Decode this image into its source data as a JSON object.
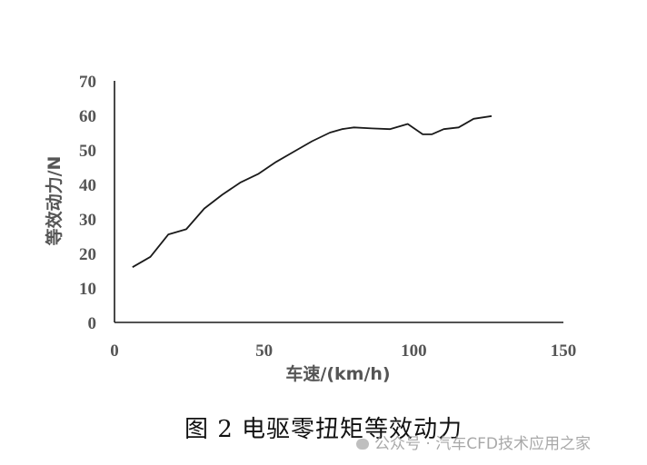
{
  "chart_data": {
    "type": "line",
    "title": "",
    "xlabel": "车速/(km/h)",
    "ylabel": "等效动力/N",
    "xlim": [
      0,
      150
    ],
    "ylim": [
      0,
      70
    ],
    "xticks": [
      0,
      50,
      100,
      150
    ],
    "yticks": [
      0,
      10,
      20,
      30,
      40,
      50,
      60,
      70
    ],
    "grid": false,
    "series": [
      {
        "color": "#1a1a1a",
        "x": [
          6,
          12,
          18,
          24,
          30,
          36,
          42,
          48,
          54,
          60,
          66,
          72,
          76,
          80,
          86,
          92,
          98,
          103,
          106,
          110,
          115,
          120,
          126
        ],
        "y": [
          16,
          19,
          25.5,
          27,
          33,
          37,
          40.5,
          43,
          46.5,
          49.5,
          52.5,
          55,
          56,
          56.5,
          56.2,
          56,
          57.5,
          54.5,
          54.5,
          56,
          56.5,
          59,
          59.8
        ]
      }
    ],
    "color_axis": "#1a1a1a",
    "color_text": "#555555"
  },
  "caption": "图 2  电驱零扭矩等效动力",
  "watermark": {
    "icon": "wechat-icon",
    "text": "公众号 · 汽车CFD技术应用之家"
  }
}
